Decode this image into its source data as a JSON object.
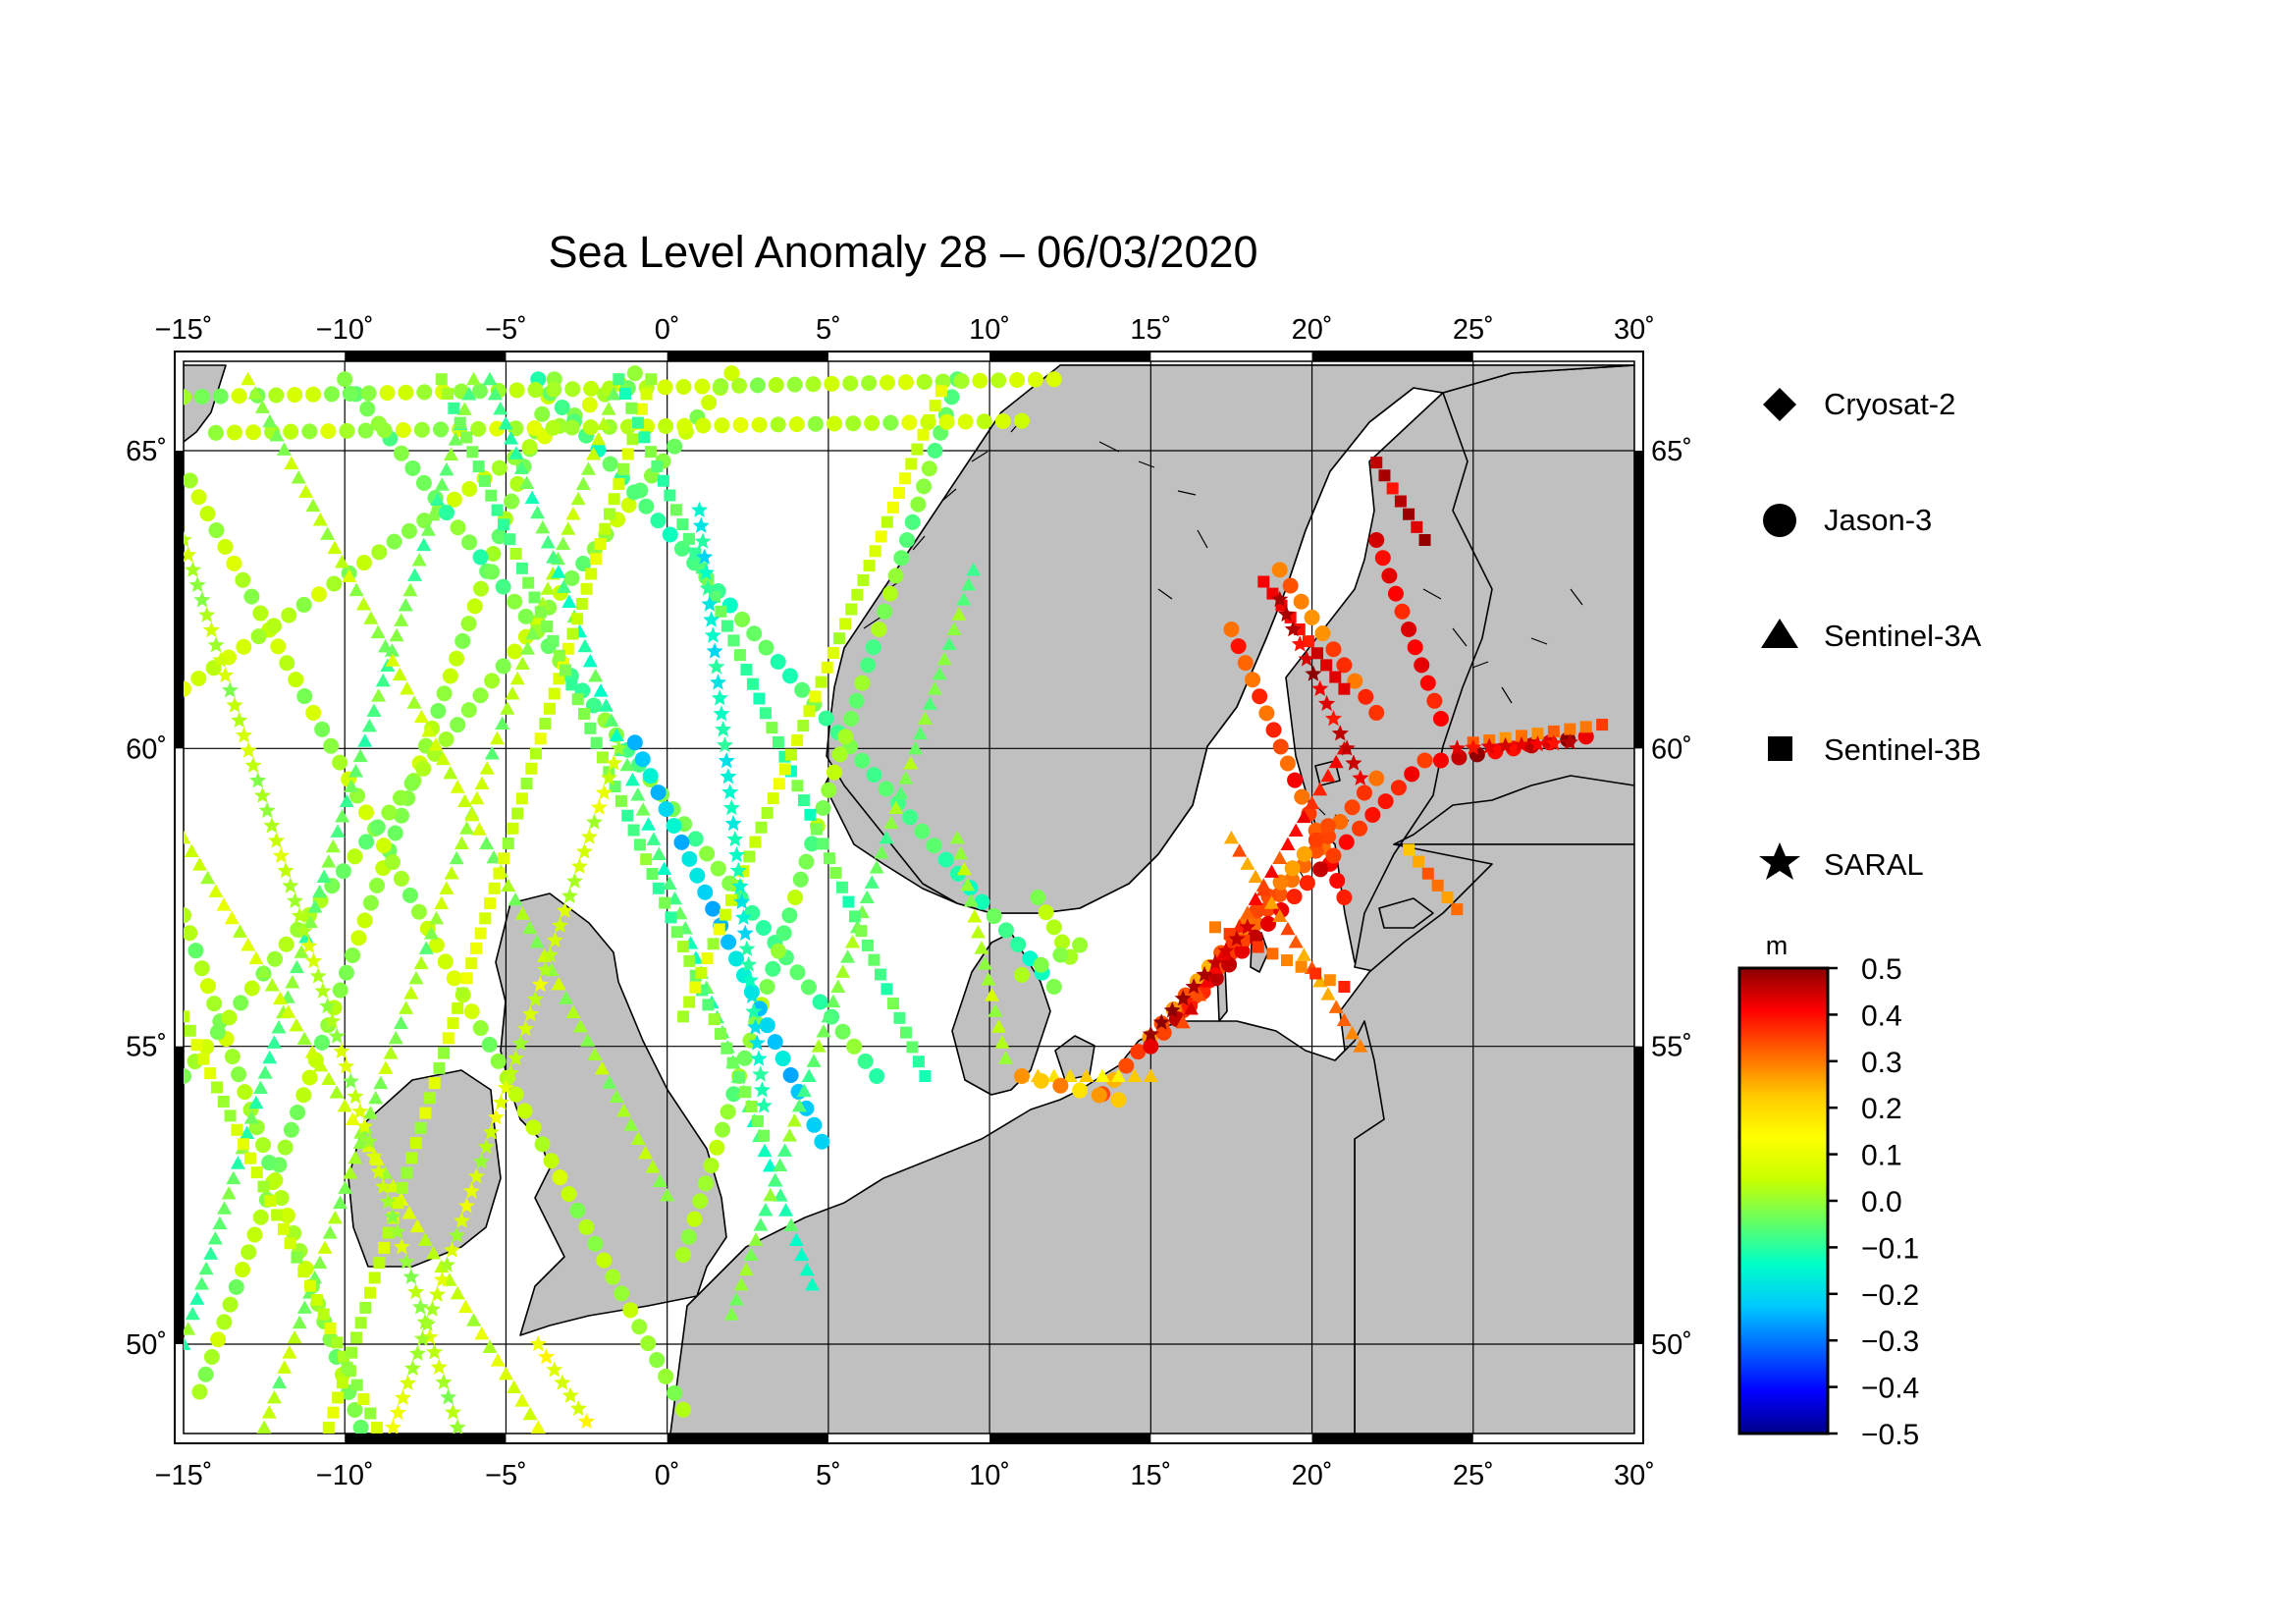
{
  "title": "Sea Level Anomaly 28 – 06/03/2020",
  "map": {
    "lon_range": [
      -15,
      30
    ],
    "lat_range": [
      48.5,
      66.5
    ],
    "lon_ticks": [
      {
        "value": -15,
        "label": "−15˚"
      },
      {
        "value": -10,
        "label": "−10˚"
      },
      {
        "value": -5,
        "label": "−5˚"
      },
      {
        "value": 0,
        "label": "0˚"
      },
      {
        "value": 5,
        "label": "5˚"
      },
      {
        "value": 10,
        "label": "10˚"
      },
      {
        "value": 15,
        "label": "15˚"
      },
      {
        "value": 20,
        "label": "20˚"
      },
      {
        "value": 25,
        "label": "25˚"
      },
      {
        "value": 30,
        "label": "30˚"
      }
    ],
    "lat_ticks": [
      {
        "value": 50,
        "label": "50˚"
      },
      {
        "value": 55,
        "label": "55˚"
      },
      {
        "value": 60,
        "label": "60˚"
      },
      {
        "value": 65,
        "label": "65˚"
      }
    ],
    "land_color": "#c0c0c0",
    "sea_color": "#ffffff",
    "grid": true
  },
  "legend": {
    "items": [
      {
        "label": "Cryosat-2",
        "symbol": "diamond-icon"
      },
      {
        "label": "Jason-3",
        "symbol": "circle-icon"
      },
      {
        "label": "Sentinel-3A",
        "symbol": "triangle-icon"
      },
      {
        "label": "Sentinel-3B",
        "symbol": "square-icon"
      },
      {
        "label": "SARAL",
        "symbol": "star-icon"
      }
    ]
  },
  "colorbar": {
    "unit": "m",
    "min": -0.5,
    "max": 0.5,
    "tick_labels": [
      "0.5",
      "0.4",
      "0.3",
      "0.2",
      "0.1",
      "0.0",
      "−0.1",
      "−0.2",
      "−0.3",
      "−0.4",
      "−0.5"
    ],
    "colors": [
      "#00008b",
      "#0000ff",
      "#0064ff",
      "#00c8ff",
      "#00ffc8",
      "#64ff64",
      "#c8ff00",
      "#ffff00",
      "#ffc800",
      "#ff6400",
      "#ff0000",
      "#8b0000"
    ]
  },
  "tracks": [
    {
      "satellite": "Jason-3",
      "from": [
        -14.5,
        49.2
      ],
      "to": [
        -3.5,
        66.2
      ],
      "value": 0.0
    },
    {
      "satellite": "Jason-3",
      "from": [
        -9.5,
        48.6
      ],
      "to": [
        -15,
        57.2
      ],
      "value": 0.01
    },
    {
      "satellite": "Jason-3",
      "from": [
        -14.8,
        64.5
      ],
      "to": [
        0.5,
        48.9
      ],
      "value": 0.02
    },
    {
      "satellite": "Jason-3",
      "from": [
        -15,
        61
      ],
      "to": [
        -1,
        66.3
      ],
      "value": 0.03
    },
    {
      "satellite": "Jason-3",
      "from": [
        -15,
        54.5
      ],
      "to": [
        2,
        66.3
      ],
      "value": 0.0
    },
    {
      "satellite": "Jason-3",
      "from": [
        -10,
        66.2
      ],
      "to": [
        6.5,
        54.5
      ],
      "value": -0.05
    },
    {
      "satellite": "Jason-3",
      "from": [
        -4,
        66.2
      ],
      "to": [
        12,
        56
      ],
      "value": -0.08
    },
    {
      "satellite": "Jason-3",
      "from": [
        0.5,
        51.5
      ],
      "to": [
        9,
        66.2
      ],
      "value": -0.02
    },
    {
      "satellite": "Jason-3",
      "from": [
        -1,
        60.1
      ],
      "to": [
        4.8,
        53.4
      ],
      "value": -0.2
    },
    {
      "satellite": "Jason-3",
      "from": [
        -15,
        65.9
      ],
      "to": [
        12,
        66.2
      ],
      "value": 0.02
    },
    {
      "satellite": "Jason-3",
      "from": [
        -14,
        65.3
      ],
      "to": [
        11,
        65.5
      ],
      "value": 0.04
    },
    {
      "satellite": "Sentinel-3A",
      "from": [
        -15,
        50
      ],
      "to": [
        -6,
        66.2
      ],
      "value": -0.05
    },
    {
      "satellite": "Sentinel-3A",
      "from": [
        -12.5,
        48.6
      ],
      "to": [
        -1.5,
        66.2
      ],
      "value": 0.0
    },
    {
      "satellite": "Sentinel-3A",
      "from": [
        -15,
        58.5
      ],
      "to": [
        -4,
        48.6
      ],
      "value": 0.05
    },
    {
      "satellite": "Sentinel-3A",
      "from": [
        -13,
        66.2
      ],
      "to": [
        0,
        52.5
      ],
      "value": 0.02
    },
    {
      "satellite": "Sentinel-3A",
      "from": [
        -5.5,
        66.2
      ],
      "to": [
        4.5,
        51
      ],
      "value": -0.08
    },
    {
      "satellite": "Sentinel-3A",
      "from": [
        2,
        50.5
      ],
      "to": [
        9.5,
        63
      ],
      "value": -0.03
    },
    {
      "satellite": "Sentinel-3B",
      "from": [
        -15,
        55.5
      ],
      "to": [
        -9,
        48.6
      ],
      "value": 0.04
    },
    {
      "satellite": "Sentinel-3B",
      "from": [
        -10.5,
        48.6
      ],
      "to": [
        -0.5,
        66.2
      ],
      "value": 0.05
    },
    {
      "satellite": "Sentinel-3B",
      "from": [
        -7,
        66.2
      ],
      "to": [
        3,
        53.5
      ],
      "value": -0.04
    },
    {
      "satellite": "Sentinel-3B",
      "from": [
        -1.5,
        66.2
      ],
      "to": [
        8,
        54.5
      ],
      "value": -0.07
    },
    {
      "satellite": "Sentinel-3B",
      "from": [
        0.5,
        55.5
      ],
      "to": [
        8.5,
        66
      ],
      "value": 0.06
    },
    {
      "satellite": "SARAL",
      "from": [
        -15,
        63.5
      ],
      "to": [
        -6.5,
        48.6
      ],
      "value": 0.03
    },
    {
      "satellite": "SARAL",
      "from": [
        -8.5,
        48.6
      ],
      "to": [
        -1.5,
        60
      ],
      "value": 0.06
    },
    {
      "satellite": "SARAL",
      "from": [
        1,
        64
      ],
      "to": [
        3,
        54
      ],
      "value": -0.15
    },
    {
      "satellite": "SARAL",
      "from": [
        -4,
        50
      ],
      "to": [
        -2.5,
        48.7
      ],
      "value": 0.12
    },
    {
      "satellite": "Jason-3",
      "from": [
        19,
        63
      ],
      "to": [
        22,
        60.6
      ],
      "value": 0.33
    },
    {
      "satellite": "Jason-3",
      "from": [
        17.5,
        62
      ],
      "to": [
        21,
        57.5
      ],
      "value": 0.36
    },
    {
      "satellite": "Jason-3",
      "from": [
        16,
        55.6
      ],
      "to": [
        22,
        59.5
      ],
      "value": 0.35
    },
    {
      "satellite": "Jason-3",
      "from": [
        13.5,
        54.2
      ],
      "to": [
        20.5,
        58.7
      ],
      "value": 0.3
    },
    {
      "satellite": "Jason-3",
      "from": [
        15,
        55
      ],
      "to": [
        23.5,
        59.8
      ],
      "value": 0.4
    },
    {
      "satellite": "Jason-3",
      "from": [
        22,
        63.5
      ],
      "to": [
        24,
        60.5
      ],
      "value": 0.42
    },
    {
      "satellite": "Jason-3",
      "from": [
        24,
        59.8
      ],
      "to": [
        28.5,
        60.2
      ],
      "value": 0.44
    },
    {
      "satellite": "Sentinel-3A",
      "from": [
        17.5,
        58.5
      ],
      "to": [
        21.5,
        55
      ],
      "value": 0.3
    },
    {
      "satellite": "Sentinel-3A",
      "from": [
        16,
        55.4
      ],
      "to": [
        21,
        60
      ],
      "value": 0.38
    },
    {
      "satellite": "Sentinel-3A",
      "from": [
        11,
        54.5
      ],
      "to": [
        15,
        54.5
      ],
      "value": 0.2
    },
    {
      "satellite": "Sentinel-3B",
      "from": [
        18.5,
        62.8
      ],
      "to": [
        21,
        61
      ],
      "value": 0.4
    },
    {
      "satellite": "Sentinel-3B",
      "from": [
        17,
        57
      ],
      "to": [
        21,
        56
      ],
      "value": 0.32
    },
    {
      "satellite": "Sentinel-3B",
      "from": [
        22,
        64.8
      ],
      "to": [
        23.5,
        63.5
      ],
      "value": 0.45
    },
    {
      "satellite": "Sentinel-3B",
      "from": [
        23,
        58.3
      ],
      "to": [
        24.5,
        57.3
      ],
      "value": 0.28
    },
    {
      "satellite": "Sentinel-3B",
      "from": [
        25,
        60.1
      ],
      "to": [
        29,
        60.4
      ],
      "value": 0.33
    },
    {
      "satellite": "SARAL",
      "from": [
        19,
        62.5
      ],
      "to": [
        21.5,
        59.5
      ],
      "value": 0.44
    },
    {
      "satellite": "SARAL",
      "from": [
        15,
        55.2
      ],
      "to": [
        18,
        57
      ],
      "value": 0.45
    },
    {
      "satellite": "SARAL",
      "from": [
        24.5,
        60
      ],
      "to": [
        28,
        60.1
      ],
      "value": 0.42
    },
    {
      "satellite": "Jason-3",
      "from": [
        11.5,
        57.5
      ],
      "to": [
        12.5,
        56.5
      ],
      "value": -0.01
    },
    {
      "satellite": "Jason-3",
      "from": [
        11,
        56.2
      ],
      "to": [
        12.8,
        56.7
      ],
      "value": 0.04
    },
    {
      "satellite": "Sentinel-3A",
      "from": [
        9,
        58.5
      ],
      "to": [
        10.5,
        54.8
      ],
      "value": 0.02
    },
    {
      "satellite": "Jason-3",
      "from": [
        11,
        54.5
      ],
      "to": [
        14,
        54.1
      ],
      "value": 0.24
    }
  ]
}
